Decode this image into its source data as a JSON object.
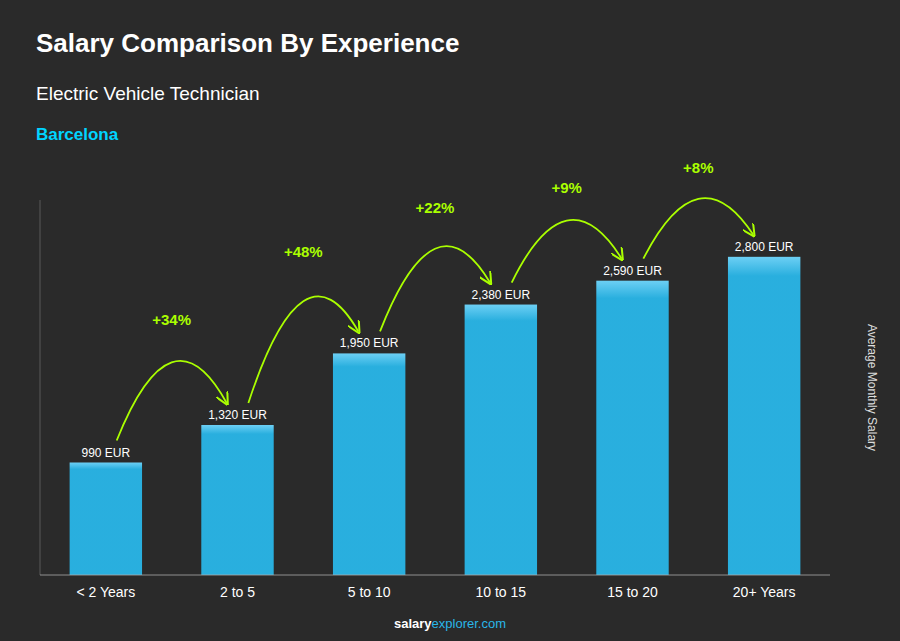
{
  "chart_data": {
    "type": "bar",
    "title": "Salary Comparison By Experience",
    "subtitle": "Electric Vehicle Technician",
    "city": "Barcelona",
    "y_label": "Average Monthly Salary",
    "categories": [
      "< 2 Years",
      "2 to 5",
      "5 to 10",
      "10 to 15",
      "15 to 20",
      "20+ Years"
    ],
    "values": [
      990,
      1320,
      1950,
      2380,
      2590,
      2800
    ],
    "value_labels": [
      "990 EUR",
      "1,320 EUR",
      "1,950 EUR",
      "2,380 EUR",
      "2,590 EUR",
      "2,800 EUR"
    ],
    "data_labels": true,
    "annotations": [
      "+34%",
      "+48%",
      "+22%",
      "+9%",
      "+8%"
    ],
    "footer": [
      "salary",
      "explorer.com"
    ],
    "color": "#29b6e8",
    "ylim": [
      0,
      3300
    ],
    "tick_labels": "x",
    "grid": false
  }
}
